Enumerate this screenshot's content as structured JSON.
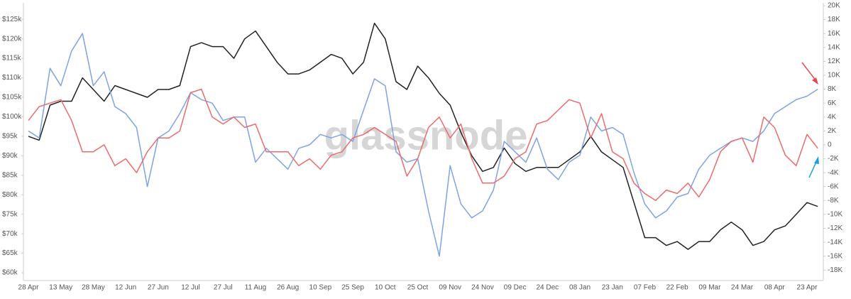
{
  "chart_data": {
    "type": "line",
    "watermark": "glassnode",
    "categories": [
      "28 Apr",
      null,
      null,
      "13 May",
      null,
      null,
      "28 May",
      null,
      null,
      "12 Jun",
      null,
      null,
      "27 Jun",
      null,
      null,
      "12 Jul",
      null,
      null,
      "27 Jul",
      null,
      null,
      "11 Aug",
      null,
      null,
      "26 Aug",
      null,
      null,
      "10 Sep",
      null,
      null,
      "25 Sep",
      null,
      null,
      "10 Oct",
      null,
      null,
      "25 Oct",
      null,
      null,
      "09 Nov",
      null,
      null,
      "24 Nov",
      null,
      null,
      "09 Dec",
      null,
      null,
      "24 Dec",
      null,
      null,
      "08 Jan",
      null,
      null,
      "23 Jan",
      null,
      null,
      "07 Feb",
      null,
      null,
      "22 Feb",
      null,
      null,
      "09 Mar",
      null,
      null,
      "24 Mar",
      null,
      null,
      "08 Apr",
      null,
      null,
      "23 Apr",
      null
    ],
    "series": [
      {
        "color": "#222222",
        "axis": "y",
        "values": [
          95000,
          94000,
          103000,
          104000,
          104000,
          110000,
          107000,
          104000,
          108000,
          107000,
          106000,
          105000,
          107000,
          107000,
          108000,
          118000,
          119000,
          118000,
          118000,
          115000,
          120000,
          122000,
          118000,
          114000,
          111000,
          111000,
          112000,
          114000,
          116000,
          115000,
          111000,
          114000,
          124000,
          120000,
          109000,
          107000,
          113000,
          110000,
          106000,
          103000,
          96000,
          90000,
          86000,
          87000,
          92000,
          88000,
          86000,
          87000,
          87000,
          87000,
          89000,
          91000,
          95000,
          91000,
          89000,
          87000,
          78000,
          69000,
          69000,
          67000,
          68000,
          66000,
          68000,
          68000,
          71000,
          73000,
          71000,
          67000,
          68000,
          71000,
          72000,
          75000,
          78000,
          77000
        ]
      },
      {
        "color": "#7ea3e8",
        "axis": "y2",
        "values": [
          2000,
          1000,
          11000,
          8500,
          13500,
          16000,
          8500,
          10500,
          5500,
          4500,
          2500,
          -6000,
          1000,
          2000,
          4500,
          7500,
          6500,
          6000,
          3500,
          4000,
          4000,
          -2500,
          -500,
          -2000,
          -3500,
          -500,
          0,
          1500,
          1000,
          1500,
          500,
          5000,
          9500,
          8500,
          -1000,
          -2500,
          -2000,
          -9500,
          -16000,
          -3000,
          -8500,
          -10500,
          -9500,
          -6500,
          500,
          -1000,
          -2500,
          1000,
          -3500,
          -5000,
          -2500,
          -1500,
          4000,
          2000,
          2500,
          1500,
          -4000,
          -8500,
          -10500,
          -9500,
          -7500,
          -7000,
          -3500,
          -1500,
          -500,
          500,
          1000,
          500,
          2000,
          4500,
          5500,
          6500,
          7000,
          8000
        ]
      },
      {
        "color": "#ec6b6b",
        "axis": "y2",
        "values": [
          3500,
          5500,
          6000,
          6500,
          3500,
          -1000,
          -1000,
          0,
          -3000,
          -2000,
          -4000,
          -1000,
          1000,
          1000,
          2000,
          7500,
          8000,
          4000,
          3000,
          4000,
          2500,
          3000,
          -1000,
          -1000,
          -1000,
          -3000,
          -2000,
          -3500,
          -1500,
          -1000,
          1000,
          1500,
          2500,
          1500,
          500,
          -4500,
          -2000,
          2500,
          4000,
          1000,
          3000,
          -2000,
          -5500,
          -5500,
          -4500,
          -2000,
          -1000,
          3000,
          3500,
          5000,
          6500,
          6000,
          1000,
          4500,
          -1000,
          -2000,
          -5500,
          -7000,
          -8000,
          -6500,
          -7000,
          -5500,
          -7500,
          -5000,
          -1000,
          500,
          1000,
          -2500,
          4000,
          2500,
          -1500,
          -3000,
          1500,
          -500
        ]
      }
    ],
    "ylim": [
      58000,
      128500
    ],
    "yticks": [
      {
        "value": 60000,
        "label": "$60k"
      },
      {
        "value": 65000,
        "label": "$65k"
      },
      {
        "value": 70000,
        "label": "$70k"
      },
      {
        "value": 75000,
        "label": "$75k"
      },
      {
        "value": 80000,
        "label": "$80k"
      },
      {
        "value": 85000,
        "label": "$85k"
      },
      {
        "value": 90000,
        "label": "$90k"
      },
      {
        "value": 95000,
        "label": "$95k"
      },
      {
        "value": 100000,
        "label": "$100k"
      },
      {
        "value": 105000,
        "label": "$105k"
      },
      {
        "value": 110000,
        "label": "$110k"
      },
      {
        "value": 115000,
        "label": "$115k"
      },
      {
        "value": 120000,
        "label": "$120k"
      },
      {
        "value": 125000,
        "label": "$125k"
      }
    ],
    "y2lim": [
      -19500,
      20000
    ],
    "y2ticks": [
      {
        "value": 20000,
        "label": "20K"
      },
      {
        "value": 18000,
        "label": "18K"
      },
      {
        "value": 16000,
        "label": "16K"
      },
      {
        "value": 14000,
        "label": "14K"
      },
      {
        "value": 12000,
        "label": "12K"
      },
      {
        "value": 10000,
        "label": "10K"
      },
      {
        "value": 8000,
        "label": "8K"
      },
      {
        "value": 6000,
        "label": "6K"
      },
      {
        "value": 4000,
        "label": "4K"
      },
      {
        "value": 2000,
        "label": "2K"
      },
      0,
      {
        "value": -2000,
        "label": "-2K"
      },
      {
        "value": -4000,
        "label": "-4K"
      },
      {
        "value": -6000,
        "label": "-6K"
      },
      {
        "value": -8000,
        "label": "-8K"
      },
      {
        "value": -10000,
        "label": "-10K"
      },
      {
        "value": -12000,
        "label": "-12K"
      },
      {
        "value": -14000,
        "label": "-14K"
      },
      {
        "value": -16000,
        "label": "-16K"
      },
      {
        "value": -18000,
        "label": "-18K"
      }
    ]
  }
}
